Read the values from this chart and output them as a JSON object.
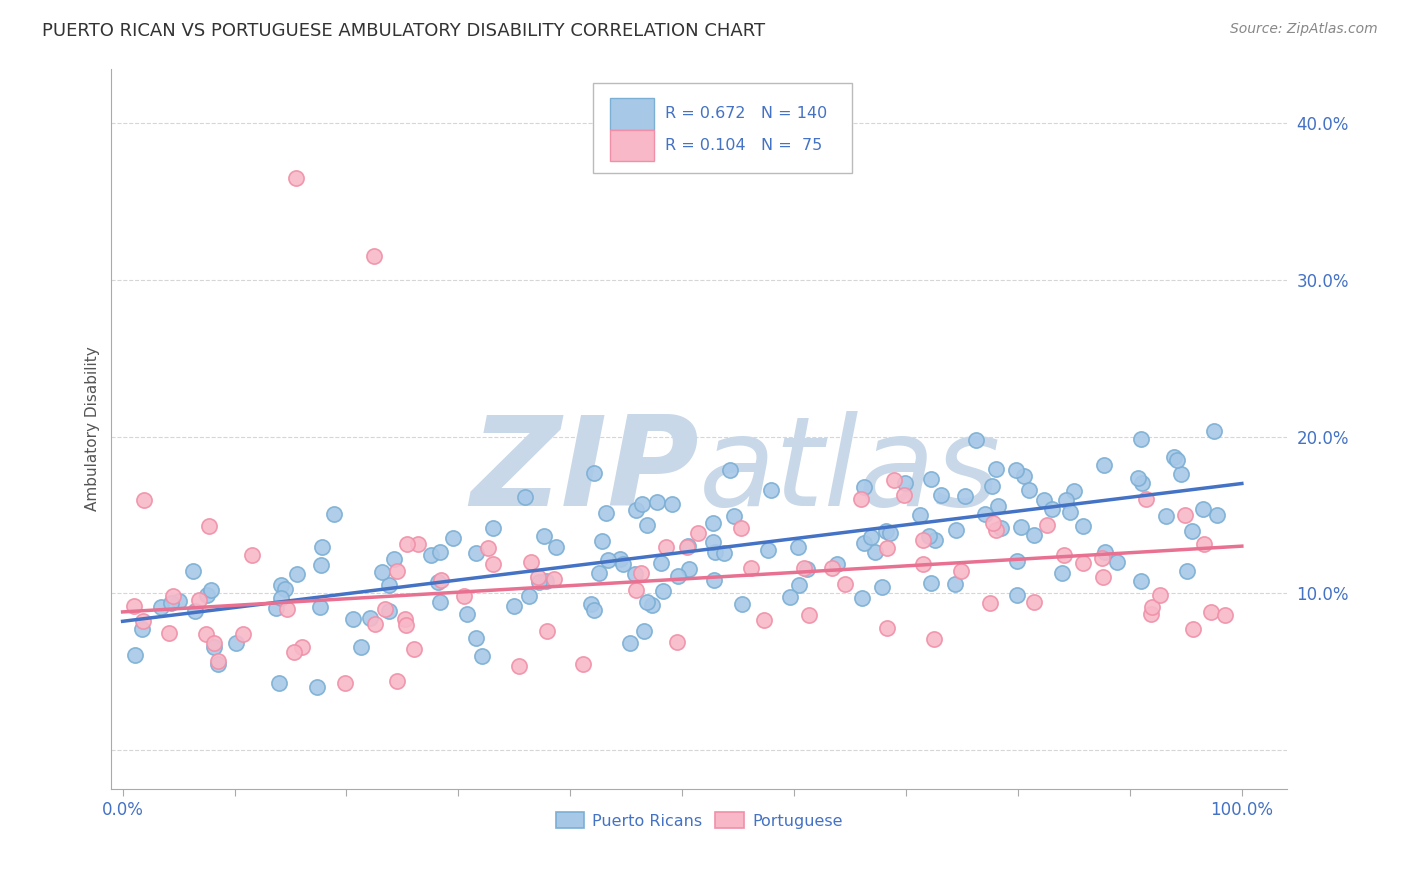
{
  "title": "PUERTO RICAN VS PORTUGUESE AMBULATORY DISABILITY CORRELATION CHART",
  "source": "Source: ZipAtlas.com",
  "ylabel": "Ambulatory Disability",
  "blue_color": "#A8C8E8",
  "blue_edge_color": "#7BAFD4",
  "pink_color": "#F8B8C8",
  "pink_edge_color": "#F090A8",
  "blue_line_color": "#4472C4",
  "pink_line_color": "#E87090",
  "tick_label_color": "#4472C4",
  "watermark_color": "#C8D8E8",
  "grid_color": "#CCCCCC",
  "legend_R_blue": "0.672",
  "legend_N_blue": "140",
  "legend_R_pink": "0.104",
  "legend_N_pink": " 75",
  "blue_intercept": 0.082,
  "blue_slope": 0.088,
  "pink_intercept": 0.088,
  "pink_slope": 0.042
}
